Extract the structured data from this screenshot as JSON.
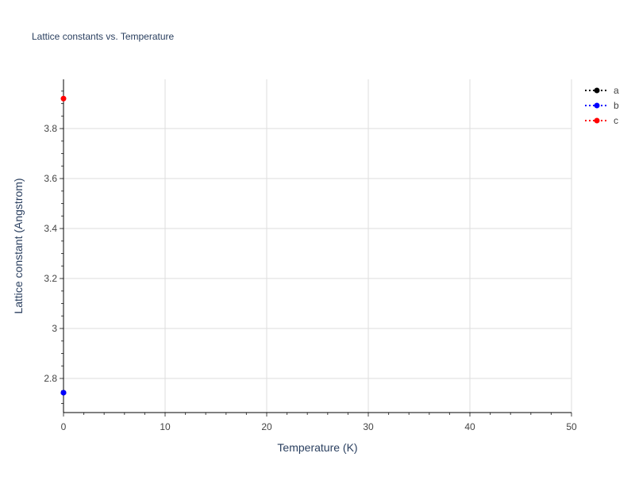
{
  "chart_data": {
    "type": "scatter",
    "title": "Lattice constants vs. Temperature",
    "xlabel": "Temperature (K)",
    "ylabel": "Lattice constant (Angstrom)",
    "xlim": [
      0,
      50
    ],
    "ylim": [
      2.6635,
      3.997
    ],
    "x_ticks": [
      0,
      10,
      20,
      30,
      40,
      50
    ],
    "y_ticks": [
      2.8,
      3,
      3.2,
      3.4,
      3.6,
      3.8
    ],
    "y_tick_labels": [
      "2.8",
      "3",
      "3.2",
      "3.4",
      "3.6",
      "3.8"
    ],
    "grid": true,
    "legend_position": "top-right",
    "series": [
      {
        "name": "a",
        "color": "#000000",
        "line": "dotted",
        "x": [
          0
        ],
        "y": [
          2.743
        ]
      },
      {
        "name": "b",
        "color": "#0000ff",
        "line": "dotted",
        "x": [
          0
        ],
        "y": [
          2.743
        ]
      },
      {
        "name": "c",
        "color": "#ff0000",
        "line": "dotted",
        "x": [
          0
        ],
        "y": [
          3.92
        ]
      }
    ]
  }
}
